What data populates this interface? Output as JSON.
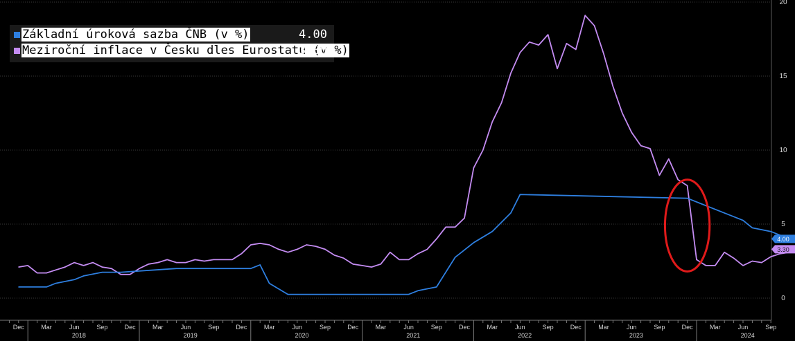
{
  "chart_data": {
    "type": "line",
    "title": "",
    "xlabel": "",
    "ylabel": "",
    "x_range": [
      "2017-11",
      "2024-12"
    ],
    "ylim": [
      -1.5,
      20
    ],
    "y_ticks": [
      0,
      5,
      10,
      15,
      20
    ],
    "y_axis_side": "right",
    "grid": true,
    "legend_position": "top-left",
    "month_tick_labels": [
      "Mar",
      "Jun",
      "Sep",
      "Dec"
    ],
    "year_labels": [
      "2018",
      "2019",
      "2020",
      "2021",
      "2022",
      "2023",
      "2024"
    ],
    "series": [
      {
        "name": "Základní úroková sazba ČNB (v %)",
        "last_value": "4.00",
        "color": "#2e7fe0",
        "points": [
          [
            "2017-12",
            0.75
          ],
          [
            "2018-03",
            0.75
          ],
          [
            "2018-04",
            1.0
          ],
          [
            "2018-06",
            1.25
          ],
          [
            "2018-07",
            1.5
          ],
          [
            "2018-09",
            1.75
          ],
          [
            "2018-11",
            1.75
          ],
          [
            "2019-05",
            2.0
          ],
          [
            "2020-01",
            2.0
          ],
          [
            "2020-02",
            2.25
          ],
          [
            "2020-03",
            1.0
          ],
          [
            "2020-05",
            0.25
          ],
          [
            "2021-06",
            0.25
          ],
          [
            "2021-07",
            0.5
          ],
          [
            "2021-09",
            0.75
          ],
          [
            "2021-11",
            2.75
          ],
          [
            "2022-01",
            3.75
          ],
          [
            "2022-03",
            4.5
          ],
          [
            "2022-05",
            5.75
          ],
          [
            "2022-06",
            7.0
          ],
          [
            "2023-12",
            6.75
          ],
          [
            "2024-02",
            6.25
          ],
          [
            "2024-04",
            5.75
          ],
          [
            "2024-06",
            5.25
          ],
          [
            "2024-07",
            4.75
          ],
          [
            "2024-09",
            4.5
          ],
          [
            "2024-11",
            4.0
          ],
          [
            "2024-12",
            4.0
          ]
        ]
      },
      {
        "name": "Meziroční inflace v Česku dles Eurostatu (v %)",
        "last_value": "3.30",
        "color": "#c48cf2",
        "points": [
          [
            "2017-12",
            2.1
          ],
          [
            "2018-01",
            2.2
          ],
          [
            "2018-02",
            1.7
          ],
          [
            "2018-03",
            1.7
          ],
          [
            "2018-04",
            1.9
          ],
          [
            "2018-05",
            2.1
          ],
          [
            "2018-06",
            2.4
          ],
          [
            "2018-07",
            2.2
          ],
          [
            "2018-08",
            2.4
          ],
          [
            "2018-09",
            2.1
          ],
          [
            "2018-10",
            2.0
          ],
          [
            "2018-11",
            1.6
          ],
          [
            "2018-12",
            1.6
          ],
          [
            "2019-01",
            2.0
          ],
          [
            "2019-02",
            2.3
          ],
          [
            "2019-03",
            2.4
          ],
          [
            "2019-04",
            2.6
          ],
          [
            "2019-05",
            2.4
          ],
          [
            "2019-06",
            2.4
          ],
          [
            "2019-07",
            2.6
          ],
          [
            "2019-08",
            2.5
          ],
          [
            "2019-09",
            2.6
          ],
          [
            "2019-10",
            2.6
          ],
          [
            "2019-11",
            2.6
          ],
          [
            "2019-12",
            3.0
          ],
          [
            "2020-01",
            3.6
          ],
          [
            "2020-02",
            3.7
          ],
          [
            "2020-03",
            3.6
          ],
          [
            "2020-04",
            3.3
          ],
          [
            "2020-05",
            3.1
          ],
          [
            "2020-06",
            3.3
          ],
          [
            "2020-07",
            3.6
          ],
          [
            "2020-08",
            3.5
          ],
          [
            "2020-09",
            3.3
          ],
          [
            "2020-10",
            2.9
          ],
          [
            "2020-11",
            2.7
          ],
          [
            "2020-12",
            2.3
          ],
          [
            "2021-01",
            2.2
          ],
          [
            "2021-02",
            2.1
          ],
          [
            "2021-03",
            2.3
          ],
          [
            "2021-04",
            3.1
          ],
          [
            "2021-05",
            2.6
          ],
          [
            "2021-06",
            2.6
          ],
          [
            "2021-07",
            3.0
          ],
          [
            "2021-08",
            3.3
          ],
          [
            "2021-09",
            4.0
          ],
          [
            "2021-10",
            4.8
          ],
          [
            "2021-11",
            4.8
          ],
          [
            "2021-12",
            5.4
          ],
          [
            "2022-01",
            8.8
          ],
          [
            "2022-02",
            10.0
          ],
          [
            "2022-03",
            11.9
          ],
          [
            "2022-04",
            13.2
          ],
          [
            "2022-05",
            15.2
          ],
          [
            "2022-06",
            16.6
          ],
          [
            "2022-07",
            17.3
          ],
          [
            "2022-08",
            17.1
          ],
          [
            "2022-09",
            17.8
          ],
          [
            "2022-10",
            15.5
          ],
          [
            "2022-11",
            17.2
          ],
          [
            "2022-12",
            16.8
          ],
          [
            "2023-01",
            19.1
          ],
          [
            "2023-02",
            18.4
          ],
          [
            "2023-03",
            16.5
          ],
          [
            "2023-04",
            14.3
          ],
          [
            "2023-05",
            12.5
          ],
          [
            "2023-06",
            11.2
          ],
          [
            "2023-07",
            10.3
          ],
          [
            "2023-08",
            10.1
          ],
          [
            "2023-09",
            8.3
          ],
          [
            "2023-10",
            9.4
          ],
          [
            "2023-11",
            8.0
          ],
          [
            "2023-12",
            7.6
          ],
          [
            "2024-01",
            2.6
          ],
          [
            "2024-02",
            2.2
          ],
          [
            "2024-03",
            2.2
          ],
          [
            "2024-04",
            3.1
          ],
          [
            "2024-05",
            2.7
          ],
          [
            "2024-06",
            2.2
          ],
          [
            "2024-07",
            2.5
          ],
          [
            "2024-08",
            2.4
          ],
          [
            "2024-09",
            2.8
          ],
          [
            "2024-10",
            3.0
          ],
          [
            "2024-11",
            3.1
          ],
          [
            "2024-12",
            3.3
          ]
        ]
      }
    ],
    "annotations": [
      {
        "type": "ellipse",
        "color": "#e01a1a",
        "center": [
          "2023-12",
          4.9
        ],
        "x_half_span_months": 2.4,
        "y_half_span": 3.1
      }
    ]
  }
}
